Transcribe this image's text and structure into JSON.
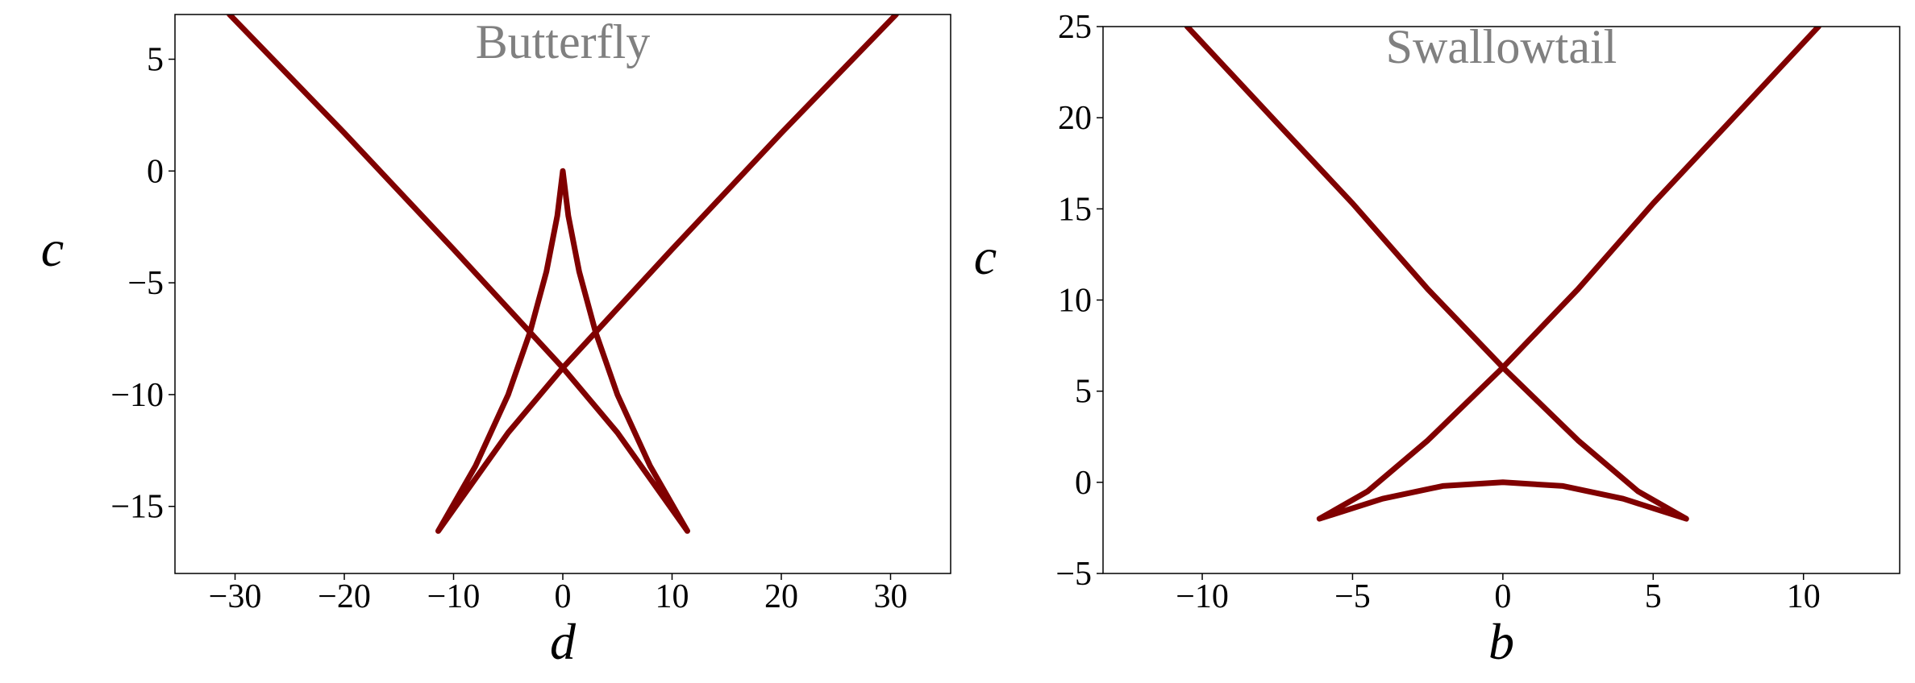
{
  "chart_data": [
    {
      "type": "line",
      "title": "Butterfly",
      "xlabel": "d",
      "ylabel": "c",
      "color": "#800000",
      "x": [
        -30.5,
        -20,
        -10,
        0,
        5,
        11.4,
        8,
        5,
        3,
        1.5,
        0.5,
        0,
        -0.5,
        -1.5,
        -3,
        -5,
        -8,
        -11.4,
        -5,
        0,
        10,
        20,
        30.5
      ],
      "values": [
        7,
        1.7,
        -3.5,
        -8.8,
        -11.7,
        -16.1,
        -13.2,
        -10,
        -7.2,
        -4.5,
        -2,
        0,
        -2,
        -4.5,
        -7.2,
        -10,
        -13.2,
        -16.1,
        -11.7,
        -8.8,
        -3.5,
        1.7,
        7
      ],
      "xlim": [
        -35.5,
        35.5
      ],
      "ylim": [
        -18,
        7
      ],
      "xticks": [
        {
          "value": -30,
          "label": "−30"
        },
        {
          "value": -20,
          "label": "−20"
        },
        {
          "value": -10,
          "label": "−10"
        },
        0,
        10,
        20,
        30
      ],
      "yticks": [
        {
          "value": -15,
          "label": "−15"
        },
        {
          "value": -10,
          "label": "−10"
        },
        {
          "value": -5,
          "label": "−5"
        },
        0,
        5
      ]
    },
    {
      "type": "line",
      "title": "Swallowtail",
      "xlabel": "b",
      "ylabel": "c",
      "color": "#800000",
      "x": [
        -10.5,
        -7.5,
        -5,
        -2.5,
        0,
        2.5,
        4.5,
        6.1,
        4,
        2,
        0,
        -2,
        -4,
        -6.1,
        -4.5,
        -2.5,
        0,
        2.5,
        5,
        7.5,
        10.5
      ],
      "values": [
        25,
        19.7,
        15.3,
        10.6,
        6.3,
        2.3,
        -0.5,
        -2,
        -0.9,
        -0.2,
        0,
        -0.2,
        -0.9,
        -2,
        -0.5,
        2.3,
        6.3,
        10.6,
        15.3,
        19.7,
        25
      ],
      "xlim": [
        -13.3,
        13.2
      ],
      "ylim": [
        -5,
        25
      ],
      "xticks": [
        {
          "value": -10,
          "label": "−10"
        },
        {
          "value": -5,
          "label": "−5"
        },
        0,
        5,
        10
      ],
      "yticks": [
        {
          "value": -5,
          "label": "−5"
        },
        0,
        5,
        10,
        15,
        20,
        25
      ]
    }
  ]
}
